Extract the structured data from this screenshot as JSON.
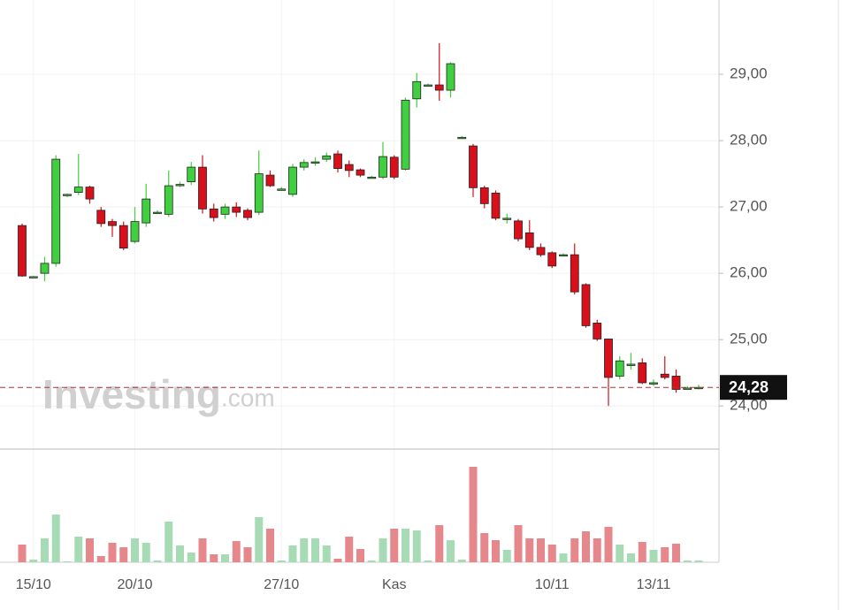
{
  "chart_data": {
    "type": "candlestick",
    "watermark": {
      "main": "Investing",
      "suffix": ".com"
    },
    "categories": [
      null,
      "15/10",
      null,
      null,
      null,
      null,
      null,
      null,
      null,
      null,
      "20/10",
      null,
      null,
      null,
      null,
      null,
      null,
      null,
      null,
      null,
      null,
      null,
      null,
      "27/10",
      null,
      null,
      null,
      null,
      null,
      null,
      null,
      null,
      null,
      "Kas",
      null,
      null,
      null,
      null,
      null,
      null,
      null,
      null,
      null,
      null,
      null,
      null,
      null,
      "10/11",
      null,
      null,
      null,
      null,
      null,
      null,
      null,
      null,
      "13/11",
      null,
      null,
      null,
      null
    ],
    "open": [
      26.72,
      25.95,
      26.0,
      26.15,
      27.19,
      27.22,
      27.3,
      26.95,
      26.78,
      26.72,
      26.48,
      26.76,
      26.92,
      26.89,
      27.33,
      27.38,
      27.6,
      26.97,
      26.89,
      27.0,
      26.95,
      26.92,
      27.48,
      27.27,
      27.19,
      27.6,
      27.68,
      27.72,
      27.8,
      27.64,
      27.56,
      27.45,
      27.45,
      27.75,
      27.57,
      28.63,
      28.84,
      28.84,
      28.76,
      28.05,
      27.92,
      27.29,
      27.21,
      26.83,
      26.79,
      26.61,
      26.39,
      26.31,
      26.28,
      26.28,
      25.83,
      25.25,
      25.01,
      24.45,
      24.63,
      24.65,
      24.35,
      24.48,
      24.45,
      24.27,
      24.28
    ],
    "high": [
      26.75,
      25.96,
      26.25,
      27.78,
      27.2,
      27.8,
      27.32,
      27.0,
      26.82,
      26.78,
      27.0,
      27.35,
      26.95,
      27.55,
      27.38,
      27.68,
      27.78,
      27.05,
      27.05,
      27.07,
      26.98,
      27.85,
      27.55,
      27.3,
      27.65,
      27.72,
      27.75,
      27.82,
      27.85,
      27.7,
      27.58,
      27.47,
      27.98,
      27.78,
      28.65,
      29.02,
      28.86,
      29.47,
      29.18,
      28.07,
      27.95,
      27.32,
      27.25,
      26.9,
      26.82,
      26.8,
      26.45,
      26.33,
      26.3,
      26.45,
      25.85,
      25.3,
      25.01,
      24.75,
      24.8,
      24.72,
      24.4,
      24.75,
      24.55,
      24.3,
      24.32
    ],
    "low": [
      25.95,
      25.94,
      25.88,
      26.1,
      27.15,
      27.18,
      27.05,
      26.7,
      26.55,
      26.35,
      26.45,
      26.7,
      26.9,
      26.85,
      27.3,
      27.33,
      26.9,
      26.78,
      26.82,
      26.85,
      26.8,
      26.88,
      27.3,
      27.25,
      27.15,
      27.55,
      27.62,
      27.68,
      27.52,
      27.45,
      27.45,
      27.43,
      27.42,
      27.42,
      27.55,
      28.5,
      28.82,
      28.6,
      28.65,
      28.03,
      27.15,
      26.98,
      26.8,
      26.75,
      26.48,
      26.35,
      26.25,
      26.08,
      26.26,
      25.68,
      25.18,
      24.98,
      24.0,
      24.4,
      24.55,
      24.33,
      24.3,
      24.4,
      24.2,
      24.25,
      24.25
    ],
    "close": [
      25.96,
      25.95,
      26.15,
      27.72,
      27.19,
      27.3,
      27.12,
      26.75,
      26.72,
      26.38,
      26.78,
      27.12,
      26.92,
      27.32,
      27.34,
      27.6,
      26.97,
      26.84,
      27.0,
      26.92,
      26.84,
      27.5,
      27.32,
      27.27,
      27.6,
      27.67,
      27.68,
      27.77,
      27.58,
      27.55,
      27.48,
      27.45,
      27.76,
      27.45,
      28.61,
      28.89,
      28.84,
      28.76,
      29.16,
      28.05,
      27.29,
      27.05,
      26.83,
      26.83,
      26.52,
      26.39,
      26.28,
      26.11,
      26.28,
      25.72,
      25.21,
      25.01,
      24.43,
      24.68,
      24.63,
      24.35,
      24.35,
      24.43,
      24.25,
      24.27,
      24.28
    ],
    "volume": [
      20,
      3,
      27,
      54,
      1,
      29,
      27,
      7,
      22,
      17,
      27,
      22,
      2,
      46,
      19,
      11,
      27,
      9,
      9,
      24,
      17,
      51,
      38,
      2,
      19,
      27,
      27,
      19,
      4,
      29,
      15,
      2,
      27,
      38,
      38,
      36,
      2,
      42,
      25,
      3,
      108,
      33,
      25,
      14,
      42,
      27,
      27,
      20,
      10,
      27,
      35,
      27,
      40,
      20,
      10,
      23,
      14,
      17,
      21,
      2,
      2
    ],
    "up_color": "#3fcf3f",
    "down_color": "#d8101c",
    "up_volume_color": "#a6dbb5",
    "down_volume_color": "#e6878c",
    "ylim": [
      23.35,
      30.12
    ],
    "volume_lim": [
      0,
      126
    ],
    "yticks": [
      {
        "value": 24,
        "label": "24,00"
      },
      {
        "value": 25,
        "label": "25,00"
      },
      {
        "value": 26,
        "label": "26,00"
      },
      {
        "value": 27,
        "label": "27,00"
      },
      {
        "value": 28,
        "label": "28,00"
      },
      {
        "value": 29,
        "label": "29,00"
      }
    ],
    "last_price": {
      "value": 24.28,
      "label": "24,28"
    },
    "grid": true
  }
}
